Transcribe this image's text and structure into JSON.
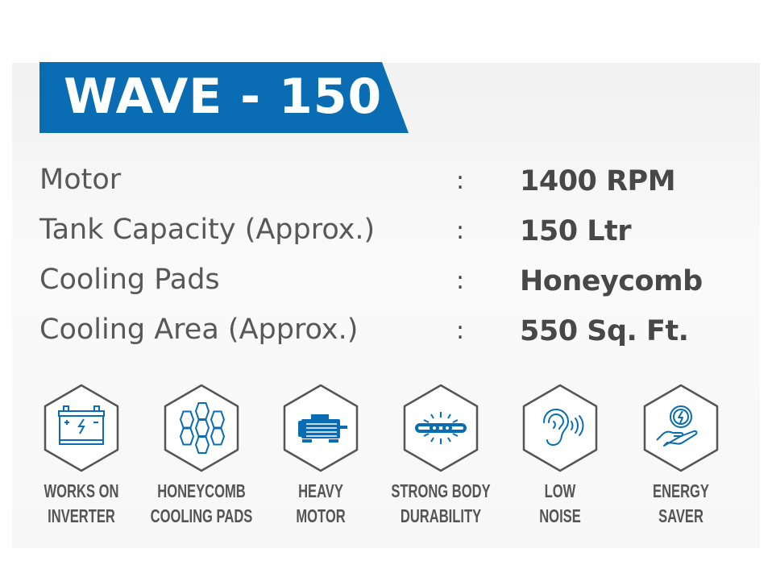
{
  "title": "WAVE - 150",
  "colors": {
    "brand": "#0a6db3",
    "text": "#555555"
  },
  "specs": [
    {
      "label": "Motor",
      "value": "1400 RPM"
    },
    {
      "label": "Tank Capacity (Approx.)",
      "value": "150 Ltr"
    },
    {
      "label": "Cooling Pads",
      "value": "Honeycomb"
    },
    {
      "label": "Cooling Area (Approx.)",
      "value": "550 Sq. Ft."
    }
  ],
  "separator": ":",
  "features": [
    {
      "icon": "battery-icon",
      "line1": "WORKS ON",
      "line2": "INVERTER"
    },
    {
      "icon": "honeycomb-icon",
      "line1": "HONEYCOMB",
      "line2": "COOLING PADS"
    },
    {
      "icon": "motor-icon",
      "line1": "HEAVY",
      "line2": "MOTOR"
    },
    {
      "icon": "chain-icon",
      "line1": "STRONG BODY",
      "line2": "DURABILITY"
    },
    {
      "icon": "ear-icon",
      "line1": "LOW",
      "line2": "NOISE"
    },
    {
      "icon": "energy-hand-icon",
      "line1": "ENERGY",
      "line2": "SAVER"
    }
  ]
}
